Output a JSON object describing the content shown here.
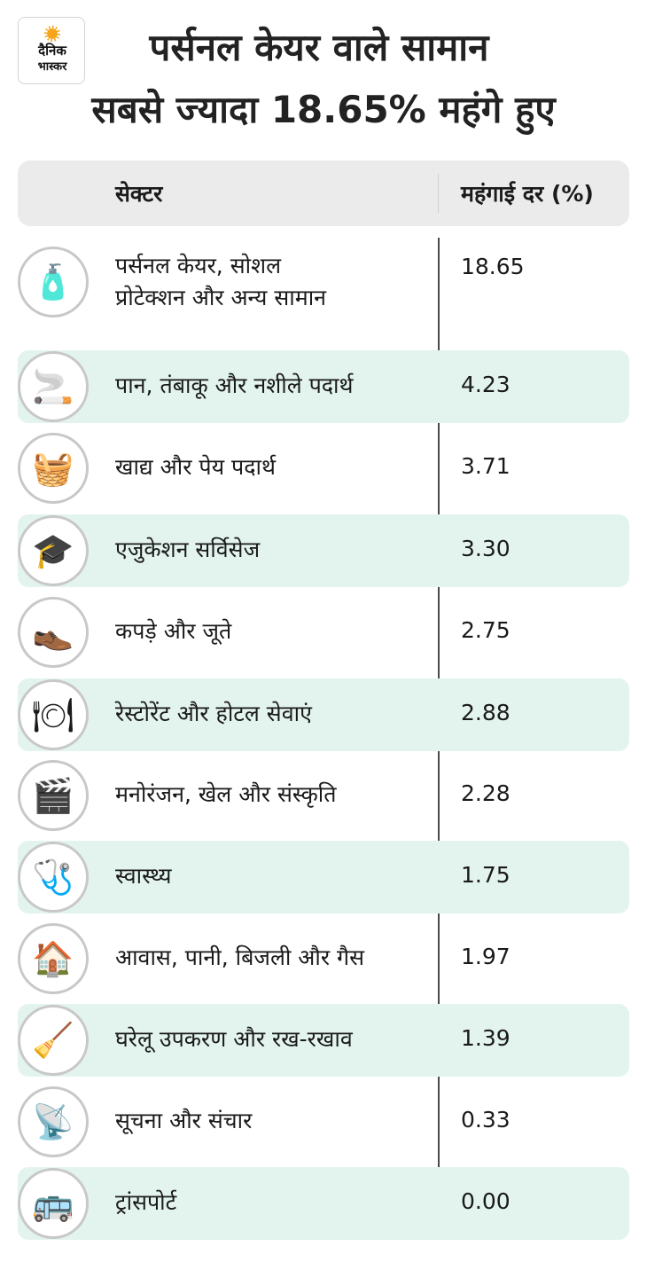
{
  "logo": {
    "line1": "दैनिक",
    "line2": "भास्कर"
  },
  "title": {
    "line1": "पर्सनल केयर वाले सामान",
    "line2": "सबसे ज्यादा 18.65% महंगे हुए"
  },
  "table": {
    "header": {
      "sector": "सेक्टर",
      "rate": "महंगाई दर (%)"
    },
    "rows": [
      {
        "label_line1": "पर्सनल केयर, सोशल",
        "label_line2": "प्रोटेक्शन और अन्य सामान",
        "value": "18.65",
        "icon": "personal-care-products-icon",
        "glyph": "🧴"
      },
      {
        "label_line1": "पान, तंबाकू और नशीले पदार्थ",
        "value": "4.23",
        "icon": "tobacco-paan-icon",
        "glyph": "🚬"
      },
      {
        "label_line1": "खाद्य और पेय पदार्थ",
        "value": "3.71",
        "icon": "food-basket-icon",
        "glyph": "🧺"
      },
      {
        "label_line1": "एजुकेशन सर्विसेज",
        "value": "3.30",
        "icon": "education-books-icon",
        "glyph": "🎓"
      },
      {
        "label_line1": "कपड़े और जूते",
        "value": "2.75",
        "icon": "clothes-shoes-icon",
        "glyph": "👞"
      },
      {
        "label_line1": "रेस्टोरेंट और होटल सेवाएं",
        "value": "2.88",
        "icon": "restaurant-cutlery-icon",
        "glyph": "🍽"
      },
      {
        "label_line1": "मनोरंजन, खेल और संस्कृति",
        "value": "2.28",
        "icon": "entertainment-sports-icon",
        "glyph": "🎬"
      },
      {
        "label_line1": "स्वास्थ्य",
        "value": "1.75",
        "icon": "health-stethoscope-icon",
        "glyph": "🩺"
      },
      {
        "label_line1": "आवास, पानी, बिजली और गैस",
        "value": "1.97",
        "icon": "house-utilities-icon",
        "glyph": "🏠"
      },
      {
        "label_line1": "घरेलू उपकरण और रख-रखाव",
        "value": "1.39",
        "icon": "washing-machine-icon",
        "glyph": "🧹"
      },
      {
        "label_line1": "सूचना और संचार",
        "value": "0.33",
        "icon": "satellite-phone-icon",
        "glyph": "📡"
      },
      {
        "label_line1": "ट्रांसपोर्ट",
        "value": "0.00",
        "icon": "transport-city-icon",
        "glyph": "🚌"
      }
    ]
  },
  "colors": {
    "row_shade": "#e3f4ee",
    "header_bg": "#ebebeb",
    "logo_sun": "#f7a51c"
  }
}
